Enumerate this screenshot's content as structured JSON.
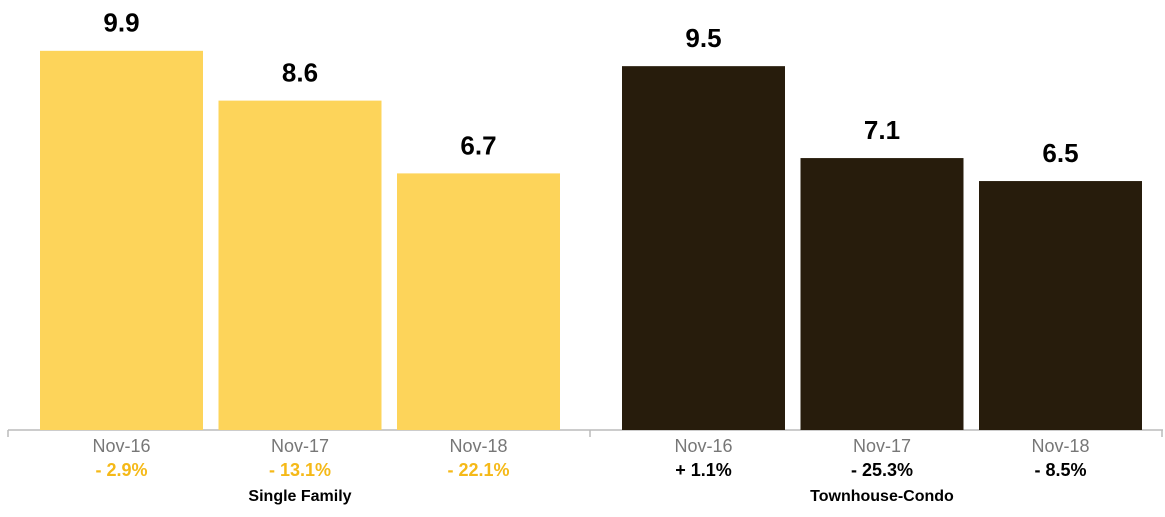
{
  "chart_data": [
    {
      "type": "bar",
      "name": "Single Family",
      "categories": [
        "Nov-16",
        "Nov-17",
        "Nov-18"
      ],
      "values": [
        9.9,
        8.6,
        6.7
      ],
      "changes": [
        "- 2.9%",
        "- 13.1%",
        "- 22.1%"
      ],
      "color": "#fdd45a",
      "change_color": "#f5b918",
      "ylim": [
        0,
        10
      ]
    },
    {
      "type": "bar",
      "name": "Townhouse-Condo",
      "categories": [
        "Nov-16",
        "Nov-17",
        "Nov-18"
      ],
      "values": [
        9.5,
        7.1,
        6.5
      ],
      "changes": [
        "+ 1.1%",
        "- 25.3%",
        "- 8.5%"
      ],
      "color": "#271c0c",
      "change_color": "#000000",
      "ylim": [
        0,
        10
      ]
    }
  ]
}
